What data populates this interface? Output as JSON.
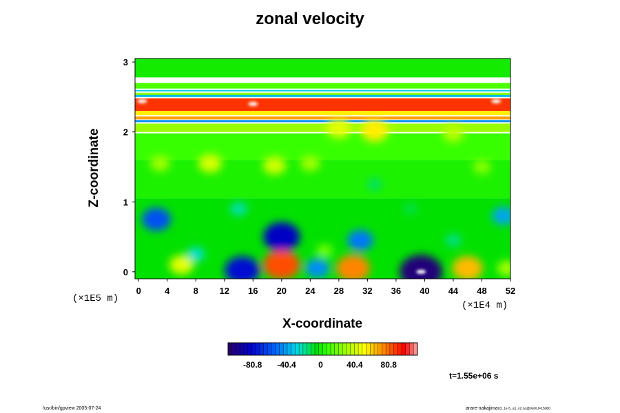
{
  "chart_data": {
    "type": "heatmap",
    "title": "zonal velocity",
    "xlabel": "X-coordinate",
    "ylabel": "Z-coordinate",
    "x_scale_label": "(×1E4 m)",
    "y_scale_label": "(×1E5 m)",
    "xlim": [
      -0.5,
      52
    ],
    "ylim": [
      -0.1,
      3.05
    ],
    "x_ticks": [
      "0",
      "4",
      "8",
      "12",
      "16",
      "20",
      "24",
      "28",
      "32",
      "36",
      "40",
      "44",
      "48",
      "52"
    ],
    "y_ticks": [
      "0",
      "1",
      "2",
      "3"
    ],
    "colorbar_ticks": [
      "-80.8",
      "-40.4",
      "0",
      "40.4",
      "80.8"
    ],
    "colorbar_range": [
      -110,
      115
    ],
    "bands": [
      {
        "z0": 2.78,
        "z1": 3.05,
        "value": 0
      },
      {
        "z0": 2.62,
        "z1": 2.7,
        "value": 12
      },
      {
        "z0": 2.58,
        "z1": 2.6,
        "value": -30
      },
      {
        "z0": 2.52,
        "z1": 2.56,
        "value": 25
      },
      {
        "z0": 2.5,
        "z1": 2.53,
        "value": -35
      },
      {
        "z0": 2.3,
        "z1": 2.48,
        "value": 90
      },
      {
        "z0": 2.24,
        "z1": 2.3,
        "value": 55
      },
      {
        "z0": 2.18,
        "z1": 2.22,
        "value": 70
      },
      {
        "z0": 2.14,
        "z1": 2.17,
        "value": -45
      },
      {
        "z0": 2.0,
        "z1": 2.12,
        "value": 28
      },
      {
        "z0": 1.6,
        "z1": 1.98,
        "value": 8
      },
      {
        "z0": 1.05,
        "z1": 1.6,
        "value": 2
      },
      {
        "z0": -0.1,
        "z1": 1.05,
        "value": -4
      }
    ],
    "blobs": [
      {
        "x": 10,
        "z": 1.55,
        "value": 42
      },
      {
        "x": 19,
        "z": 1.52,
        "value": 40
      },
      {
        "x": 24,
        "z": 1.55,
        "value": 30
      },
      {
        "x": 3,
        "z": 1.55,
        "value": 30
      },
      {
        "x": 48,
        "z": 1.5,
        "value": 25
      },
      {
        "x": 33,
        "z": 2.02,
        "value": 55
      },
      {
        "x": 28,
        "z": 2.05,
        "value": 45
      },
      {
        "x": 44,
        "z": 1.98,
        "value": 35
      },
      {
        "x": 2.5,
        "z": 0.75,
        "value": -60
      },
      {
        "x": 51,
        "z": 0.8,
        "value": -40
      },
      {
        "x": 20,
        "z": 0.5,
        "value": -85
      },
      {
        "x": 31,
        "z": 0.45,
        "value": -50
      },
      {
        "x": 14,
        "z": 0.9,
        "value": -22
      },
      {
        "x": 14.5,
        "z": 0.02,
        "value": -80
      },
      {
        "x": 20,
        "z": 0.1,
        "value": 85
      },
      {
        "x": 30,
        "z": 0.05,
        "value": 75
      },
      {
        "x": 39.5,
        "z": 0.0,
        "value": -105
      },
      {
        "x": 46,
        "z": 0.05,
        "value": 65
      },
      {
        "x": 6,
        "z": 0.1,
        "value": 45
      },
      {
        "x": 25,
        "z": 0.05,
        "value": -45
      },
      {
        "x": 51.5,
        "z": 0.05,
        "value": 30
      },
      {
        "x": 33,
        "z": 1.25,
        "value": -15
      },
      {
        "x": 8,
        "z": 0.25,
        "value": -25
      },
      {
        "x": 26,
        "z": 0.3,
        "value": 20
      },
      {
        "x": 44,
        "z": 0.45,
        "value": -18
      },
      {
        "x": 38,
        "z": 0.9,
        "value": -12
      }
    ],
    "whites": [
      {
        "x": 0.5,
        "z": 2.44
      },
      {
        "x": 50,
        "z": 2.44
      },
      {
        "x": 16,
        "z": 2.4
      },
      {
        "x": 39.5,
        "z": 0.0
      }
    ]
  },
  "time_label": "t=1.55e+06 s",
  "footer_left": "/usr/bin/gpview 2005-07-24",
  "footer_right_main": "arare-nakajima",
  "footer_right_small": "03_1e-5_a1_v2.nc@VelX,t=15000"
}
